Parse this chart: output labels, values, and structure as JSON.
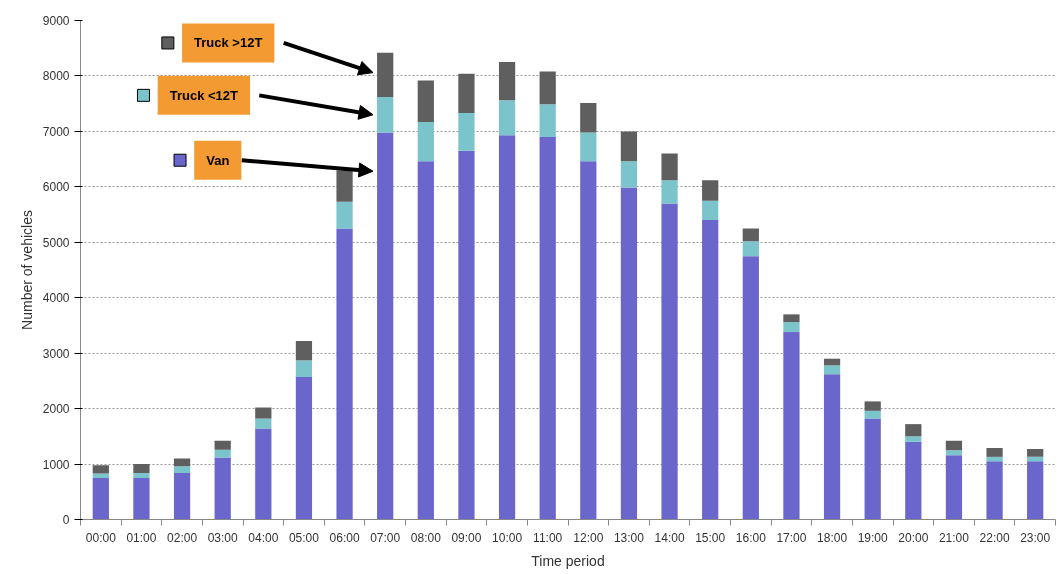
{
  "chart_data": {
    "type": "bar",
    "stacked": true,
    "xlabel": "Time period",
    "ylabel": "Number of vehicles",
    "categories": [
      "00:00",
      "01:00",
      "02:00",
      "03:00",
      "04:00",
      "05:00",
      "06:00",
      "07:00",
      "08:00",
      "09:00",
      "10:00",
      "11:00",
      "12:00",
      "13:00",
      "14:00",
      "15:00",
      "16:00",
      "17:00",
      "18:00",
      "19:00",
      "20:00",
      "21:00",
      "22:00",
      "23:00"
    ],
    "series": [
      {
        "name": "Van",
        "color": "#6b66cc",
        "values": [
          750,
          750,
          840,
          1120,
          1640,
          2570,
          5250,
          6980,
          6460,
          6650,
          6930,
          6900,
          6460,
          5990,
          5700,
          5400,
          4750,
          3380,
          2620,
          1820,
          1400,
          1160,
          1050,
          1050
        ]
      },
      {
        "name": "Truck <12T",
        "color": "#7cc4cc",
        "values": [
          80,
          90,
          120,
          140,
          180,
          300,
          480,
          640,
          710,
          680,
          630,
          590,
          520,
          470,
          420,
          350,
          270,
          180,
          160,
          140,
          100,
          90,
          80,
          80
        ]
      },
      {
        "name": "Truck >12T",
        "color": "#5f5f5f",
        "values": [
          150,
          160,
          140,
          160,
          200,
          350,
          570,
          800,
          750,
          710,
          690,
          590,
          530,
          540,
          480,
          370,
          230,
          140,
          120,
          170,
          220,
          170,
          160,
          140
        ]
      }
    ],
    "ylim": [
      0,
      9000
    ],
    "yticks": [
      0,
      1000,
      2000,
      3000,
      4000,
      5000,
      6000,
      7000,
      8000,
      9000
    ],
    "grid": "y",
    "legend": "top left"
  }
}
